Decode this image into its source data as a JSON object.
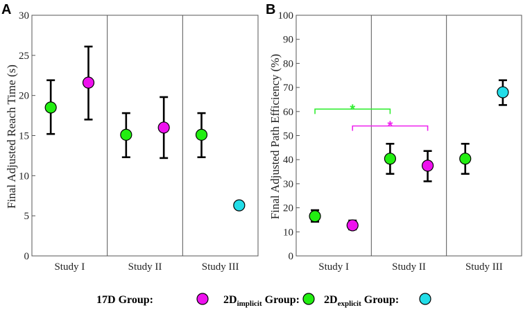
{
  "chart_data": [
    {
      "type": "scatter",
      "panel": "A",
      "ylabel": "Final Adjusted Reach Time (s)",
      "ylim": [
        0,
        30
      ],
      "yticks": [
        0,
        5,
        10,
        15,
        20,
        25,
        30
      ],
      "studies": [
        "Study I",
        "Study II",
        "Study III"
      ],
      "points": [
        {
          "study": "Study I",
          "slot": 0,
          "group": "2D implicit",
          "color": "#22ee11",
          "mean": 18.5,
          "lo": 15.2,
          "hi": 21.9
        },
        {
          "study": "Study I",
          "slot": 1,
          "group": "17D",
          "color": "#ee11ee",
          "mean": 21.6,
          "lo": 17.0,
          "hi": 26.1
        },
        {
          "study": "Study II",
          "slot": 0,
          "group": "2D implicit",
          "color": "#22ee11",
          "mean": 15.1,
          "lo": 12.3,
          "hi": 17.8
        },
        {
          "study": "Study II",
          "slot": 1,
          "group": "17D",
          "color": "#ee11ee",
          "mean": 16.0,
          "lo": 12.2,
          "hi": 19.8
        },
        {
          "study": "Study III",
          "slot": 0,
          "group": "2D implicit",
          "color": "#22ee11",
          "mean": 15.1,
          "lo": 12.3,
          "hi": 17.8
        },
        {
          "study": "Study III",
          "slot": 1,
          "group": "2D explicit",
          "color": "#22dde8",
          "mean": 6.3,
          "lo": null,
          "hi": null
        }
      ],
      "significance": []
    },
    {
      "type": "scatter",
      "panel": "B",
      "ylabel": "Final Adjusted Path Efficiency (%)",
      "ylim": [
        0,
        100
      ],
      "yticks": [
        0,
        10,
        20,
        30,
        40,
        50,
        60,
        70,
        80,
        90,
        100
      ],
      "studies": [
        "Study I",
        "Study II",
        "Study III"
      ],
      "points": [
        {
          "study": "Study I",
          "slot": 0,
          "group": "2D implicit",
          "color": "#22ee11",
          "mean": 16.5,
          "lo": 14.2,
          "hi": 19.0
        },
        {
          "study": "Study I",
          "slot": 1,
          "group": "17D",
          "color": "#ee11ee",
          "mean": 12.7,
          "lo": 11.0,
          "hi": 14.7
        },
        {
          "study": "Study II",
          "slot": 0,
          "group": "2D implicit",
          "color": "#22ee11",
          "mean": 40.4,
          "lo": 34.1,
          "hi": 46.6
        },
        {
          "study": "Study II",
          "slot": 1,
          "group": "17D",
          "color": "#ee11ee",
          "mean": 37.5,
          "lo": 31.0,
          "hi": 43.6
        },
        {
          "study": "Study III",
          "slot": 0,
          "group": "2D implicit",
          "color": "#22ee11",
          "mean": 40.4,
          "lo": 34.1,
          "hi": 46.6
        },
        {
          "study": "Study III",
          "slot": 1,
          "group": "2D explicit",
          "color": "#22dde8",
          "mean": 68.0,
          "lo": 62.7,
          "hi": 73.0
        }
      ],
      "significance": [
        {
          "from": "Study I:0",
          "to": "Study II:0",
          "level": 61,
          "label": "*",
          "color": "#33ee33"
        },
        {
          "from": "Study I:1",
          "to": "Study II:1",
          "level": 54,
          "label": "*",
          "color": "#ee22ee"
        }
      ]
    }
  ],
  "legend": [
    {
      "prefix": "17D",
      "sub": "",
      "suffix": " Group:",
      "color": "#ee11ee"
    },
    {
      "prefix": "2D",
      "sub": "implicit",
      "suffix": " Group:",
      "color": "#22ee11"
    },
    {
      "prefix": "2D",
      "sub": "explicit",
      "suffix": " Group:",
      "color": "#22dde8"
    }
  ]
}
